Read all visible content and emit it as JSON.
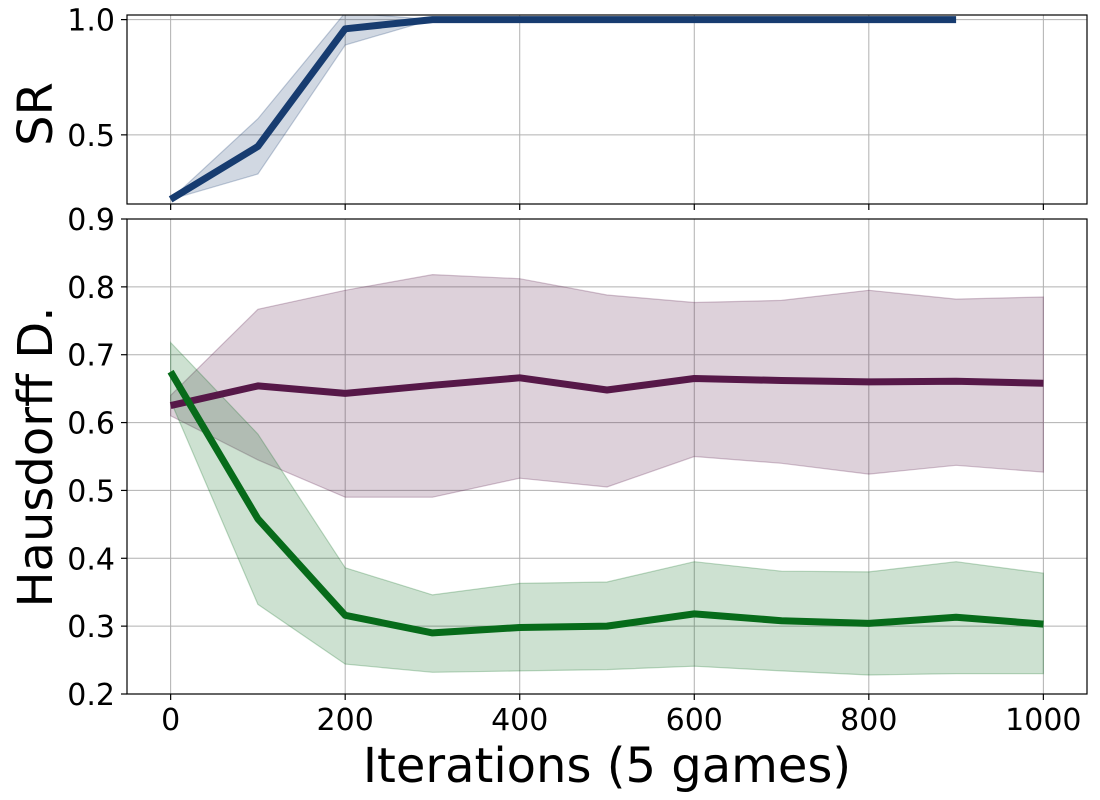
{
  "chart_data": [
    {
      "type": "line",
      "panel": "top",
      "xlabel": "",
      "ylabel": "SR",
      "xlim": [
        -50,
        1050
      ],
      "ylim": [
        0.2,
        1.02
      ],
      "yticks": [
        0.5,
        1.0
      ],
      "ytick_labels": [
        "0.5",
        "1.0"
      ],
      "xticks": [
        0,
        200,
        400,
        600,
        800,
        1000
      ],
      "grid": true,
      "series": [
        {
          "color": "#173c70",
          "x": [
            0,
            100,
            200,
            300,
            400,
            500,
            600,
            700,
            800,
            900
          ],
          "y": [
            0.22,
            0.45,
            0.96,
            1.0,
            1.0,
            1.0,
            1.0,
            1.0,
            1.0,
            1.0
          ],
          "lower": [
            0.22,
            0.33,
            0.89,
            1.0,
            1.0,
            1.0,
            1.0,
            1.0,
            1.0,
            1.0
          ],
          "upper": [
            0.22,
            0.57,
            1.03,
            1.0,
            1.0,
            1.0,
            1.0,
            1.0,
            1.0,
            1.0
          ]
        }
      ]
    },
    {
      "type": "line",
      "panel": "bottom",
      "xlabel": "Iterations (5 games)",
      "ylabel": "Hausdorff D.",
      "xlim": [
        -50,
        1050
      ],
      "ylim": [
        0.2,
        0.9
      ],
      "yticks": [
        0.2,
        0.3,
        0.4,
        0.5,
        0.6,
        0.7,
        0.8,
        0.9
      ],
      "ytick_labels": [
        "0.2",
        "0.3",
        "0.4",
        "0.5",
        "0.6",
        "0.7",
        "0.8",
        "0.9"
      ],
      "xticks": [
        0,
        200,
        400,
        600,
        800,
        1000
      ],
      "xtick_labels": [
        "0",
        "200",
        "400",
        "600",
        "800",
        "1000"
      ],
      "grid": true,
      "series": [
        {
          "color": "#561848",
          "x": [
            0,
            100,
            200,
            300,
            400,
            500,
            600,
            700,
            800,
            900,
            1000
          ],
          "y": [
            0.625,
            0.654,
            0.643,
            0.655,
            0.666,
            0.648,
            0.665,
            0.662,
            0.66,
            0.661,
            0.658
          ],
          "lower": [
            0.61,
            0.545,
            0.49,
            0.49,
            0.518,
            0.505,
            0.55,
            0.54,
            0.524,
            0.537,
            0.527
          ],
          "upper": [
            0.64,
            0.767,
            0.795,
            0.818,
            0.812,
            0.788,
            0.777,
            0.78,
            0.795,
            0.782,
            0.785
          ]
        },
        {
          "color": "#076b1a",
          "x": [
            0,
            100,
            200,
            300,
            400,
            500,
            600,
            700,
            800,
            900,
            1000
          ],
          "y": [
            0.675,
            0.458,
            0.316,
            0.29,
            0.298,
            0.3,
            0.318,
            0.308,
            0.304,
            0.313,
            0.303
          ],
          "lower": [
            0.632,
            0.332,
            0.244,
            0.232,
            0.234,
            0.236,
            0.241,
            0.234,
            0.228,
            0.23,
            0.23
          ],
          "upper": [
            0.718,
            0.583,
            0.386,
            0.346,
            0.363,
            0.365,
            0.395,
            0.381,
            0.38,
            0.395,
            0.378
          ]
        }
      ]
    }
  ]
}
